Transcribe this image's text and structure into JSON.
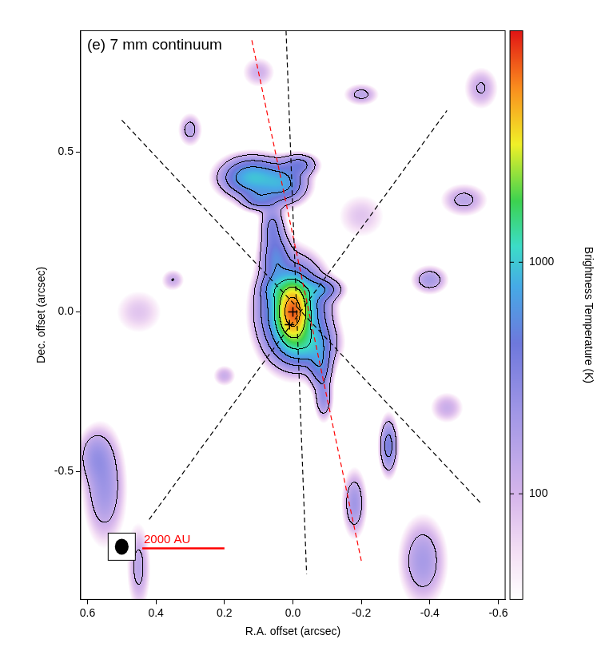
{
  "chart_data": {
    "type": "image",
    "title": "(e) 7 mm continuum",
    "x_label": "R.A. offset (arcsec)",
    "y_label": "Dec. offset (arcsec)",
    "xlim": [
      0.62,
      -0.62
    ],
    "xticks": [
      0.6,
      0.4,
      0.2,
      {
        "value": 0,
        "label": "0.0"
      },
      -0.2,
      -0.4,
      -0.6
    ],
    "ylim": [
      -0.9,
      0.88
    ],
    "yticks": [
      -0.5,
      {
        "value": 0,
        "label": "0.0"
      },
      0.5
    ],
    "grid": false,
    "colorbar": {
      "label": "Brightness Temperature (K)",
      "range": [
        35,
        10000
      ],
      "ticks": [
        100,
        1000
      ],
      "log": true
    },
    "contour_levels": [
      120,
      300,
      600,
      1200,
      2400,
      4800
    ],
    "components": [
      {
        "x": 0.0,
        "y": 0.0,
        "sx": 0.022,
        "sy": 0.045,
        "peak": 5500
      },
      {
        "x": 0.0,
        "y": 0.0,
        "sx": 0.05,
        "sy": 0.08,
        "peak": 1600
      },
      {
        "x": -0.04,
        "y": -0.1,
        "sx": 0.045,
        "sy": 0.04,
        "peak": 700
      },
      {
        "x": -0.08,
        "y": -0.17,
        "sx": 0.02,
        "sy": 0.04,
        "peak": 450
      },
      {
        "x": -0.09,
        "y": -0.27,
        "sx": 0.015,
        "sy": 0.04,
        "peak": 250
      },
      {
        "x": -0.08,
        "y": 0.07,
        "sx": 0.035,
        "sy": 0.02,
        "peak": 450
      },
      {
        "x": 0.05,
        "y": 0.07,
        "sx": 0.025,
        "sy": 0.025,
        "peak": 400
      },
      {
        "x": 0.05,
        "y": 0.17,
        "sx": 0.025,
        "sy": 0.05,
        "peak": 450
      },
      {
        "x": 0.06,
        "y": 0.27,
        "sx": 0.02,
        "sy": 0.04,
        "peak": 300
      },
      {
        "x": 0.12,
        "y": 0.42,
        "sx": 0.05,
        "sy": 0.035,
        "peak": 900
      },
      {
        "x": 0.03,
        "y": 0.4,
        "sx": 0.04,
        "sy": 0.035,
        "peak": 650
      },
      {
        "x": 0.1,
        "y": 0.35,
        "sx": 0.03,
        "sy": 0.02,
        "peak": 350
      },
      {
        "x": -0.02,
        "y": 0.46,
        "sx": 0.03,
        "sy": 0.02,
        "peak": 350
      },
      {
        "x": 0.55,
        "y": -0.55,
        "sx": 0.035,
        "sy": 0.1,
        "peak": 220
      },
      {
        "x": 0.58,
        "y": -0.45,
        "sx": 0.03,
        "sy": 0.05,
        "peak": 160
      },
      {
        "x": 0.45,
        "y": -0.8,
        "sx": 0.02,
        "sy": 0.08,
        "peak": 150
      },
      {
        "x": -0.28,
        "y": -0.42,
        "sx": 0.015,
        "sy": 0.05,
        "peak": 380
      },
      {
        "x": -0.18,
        "y": -0.6,
        "sx": 0.02,
        "sy": 0.06,
        "peak": 220
      },
      {
        "x": -0.38,
        "y": -0.78,
        "sx": 0.04,
        "sy": 0.08,
        "peak": 200
      },
      {
        "x": -0.4,
        "y": 0.1,
        "sx": 0.03,
        "sy": 0.025,
        "peak": 200
      },
      {
        "x": -0.5,
        "y": 0.35,
        "sx": 0.04,
        "sy": 0.03,
        "peak": 150
      },
      {
        "x": 0.3,
        "y": 0.57,
        "sx": 0.02,
        "sy": 0.03,
        "peak": 160
      },
      {
        "x": -0.2,
        "y": 0.68,
        "sx": 0.03,
        "sy": 0.02,
        "peak": 150
      },
      {
        "x": 0.35,
        "y": 0.1,
        "sx": 0.02,
        "sy": 0.02,
        "peak": 120
      },
      {
        "x": 0.2,
        "y": -0.2,
        "sx": 0.02,
        "sy": 0.02,
        "peak": 120
      },
      {
        "x": -0.45,
        "y": -0.3,
        "sx": 0.03,
        "sy": 0.03,
        "peak": 120
      },
      {
        "x": 0.1,
        "y": 0.75,
        "sx": 0.03,
        "sy": 0.03,
        "peak": 110
      },
      {
        "x": -0.55,
        "y": 0.7,
        "sx": 0.03,
        "sy": 0.04,
        "peak": 130
      },
      {
        "x": 0.45,
        "y": 0.0,
        "sx": 0.05,
        "sy": 0.05,
        "peak": 80
      },
      {
        "x": -0.2,
        "y": 0.3,
        "sx": 0.05,
        "sy": 0.05,
        "peak": 80
      }
    ],
    "lines": [
      {
        "x": [
          0.02,
          -0.04
        ],
        "y": [
          0.88,
          -0.82
        ],
        "color": "black",
        "line_style": "dashed"
      },
      {
        "x": [
          0.5,
          -0.55
        ],
        "y": [
          0.6,
          -0.6
        ],
        "color": "black",
        "line_style": "dashed"
      },
      {
        "x": [
          0.42,
          -0.45
        ],
        "y": [
          -0.65,
          0.63
        ],
        "color": "black",
        "line_style": "dashed"
      },
      {
        "x": [
          0.12,
          -0.2
        ],
        "y": [
          0.85,
          -0.78
        ],
        "color": "red",
        "line_style": "dashed"
      }
    ],
    "markers": {
      "x": [
        0.0,
        0.01
      ],
      "y": [
        0.0,
        -0.04
      ],
      "marker": "cross",
      "color": "black"
    },
    "beam": {
      "x": 0.5,
      "y": -0.735,
      "major": 0.05,
      "minor": 0.04
    },
    "scale_bar": {
      "label": "2000 AU",
      "x": [
        0.44,
        0.2
      ],
      "y": -0.74,
      "color": "red"
    }
  }
}
